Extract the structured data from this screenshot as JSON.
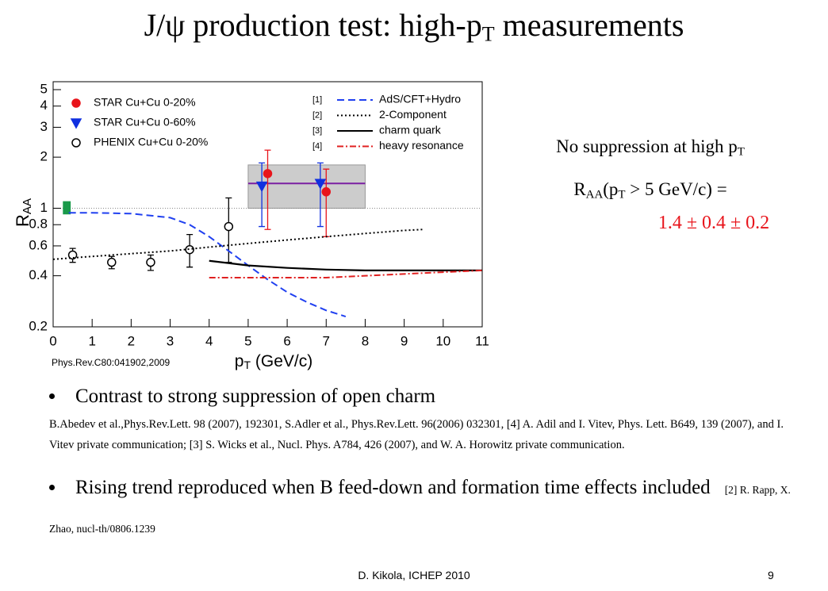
{
  "title": [
    "J/ψ production test: high-p",
    "T",
    " measurements"
  ],
  "chart_data": {
    "type": "scatter",
    "source": "Phys.Rev.C80:041902,2009",
    "x_label": [
      "p",
      "T",
      " (GeV/c)"
    ],
    "y_label": [
      "R",
      "AA"
    ],
    "xlim": [
      0,
      11
    ],
    "ylim": [
      0.2,
      5
    ],
    "log_y": true,
    "xticks": [
      0,
      1,
      2,
      3,
      4,
      5,
      6,
      7,
      8,
      9,
      10,
      11
    ],
    "yticks": [
      0.2,
      0.4,
      0.6,
      0.8,
      1,
      2,
      3,
      4,
      5
    ],
    "reference": 1,
    "band": {
      "xlim": [
        5,
        8
      ],
      "ylim": [
        1.0,
        1.8
      ],
      "value": 1.4,
      "color": "#cccccc",
      "line_color": "#7b1fa2"
    },
    "norm_box": {
      "xlim": [
        0.25,
        0.45
      ],
      "ylim": [
        0.92,
        1.1
      ],
      "color": "#1a9a4a"
    },
    "series": [
      {
        "name": "STAR Cu+Cu 0-20%",
        "kind": "points",
        "marker": "circle",
        "filled": true,
        "color": "#e8141b",
        "x": [
          5.5,
          7.0
        ],
        "values": [
          1.6,
          1.25
        ],
        "err_plus": [
          0.6,
          0.45
        ],
        "err_minus": [
          0.85,
          0.57
        ]
      },
      {
        "name": "STAR Cu+Cu 0-60%",
        "kind": "points",
        "marker": "triangle",
        "filled": true,
        "color": "#1030e0",
        "x": [
          5.35,
          6.85
        ],
        "values": [
          1.35,
          1.4
        ],
        "err_plus": [
          0.5,
          0.45
        ],
        "err_minus": [
          0.57,
          0.62
        ]
      },
      {
        "name": "PHENIX Cu+Cu 0-20%",
        "kind": "points",
        "marker": "circle",
        "filled": false,
        "color": "#000000",
        "x": [
          0.5,
          1.5,
          2.5,
          3.5,
          4.5
        ],
        "values": [
          0.53,
          0.48,
          0.48,
          0.57,
          0.78
        ],
        "err_plus": [
          0.05,
          0.04,
          0.05,
          0.13,
          0.37
        ],
        "err_minus": [
          0.05,
          0.04,
          0.05,
          0.12,
          0.3
        ]
      },
      {
        "name": "AdS/CFT+Hydro",
        "ref": "[1]",
        "kind": "line",
        "style": "dashed",
        "color": "#2040f0",
        "x": [
          0.4,
          1,
          2,
          3,
          3.5,
          4,
          4.5,
          5,
          5.5,
          6,
          6.5,
          7,
          7.5
        ],
        "values": [
          0.94,
          0.94,
          0.93,
          0.88,
          0.8,
          0.68,
          0.56,
          0.46,
          0.38,
          0.32,
          0.28,
          0.25,
          0.23
        ]
      },
      {
        "name": "2-Component",
        "ref": "[2]",
        "kind": "line",
        "style": "dotted",
        "color": "#000000",
        "x": [
          0,
          1,
          2,
          3,
          4,
          5,
          6,
          7,
          8,
          9,
          9.5
        ],
        "values": [
          0.5,
          0.52,
          0.54,
          0.56,
          0.59,
          0.62,
          0.65,
          0.68,
          0.71,
          0.74,
          0.75
        ]
      },
      {
        "name": "charm quark",
        "ref": "[3]",
        "kind": "line",
        "style": "solid",
        "color": "#000000",
        "x": [
          4,
          5,
          6,
          7,
          8,
          9,
          10,
          11
        ],
        "values": [
          0.49,
          0.46,
          0.445,
          0.435,
          0.43,
          0.43,
          0.43,
          0.43
        ]
      },
      {
        "name": "heavy resonance",
        "ref": "[4]",
        "kind": "line",
        "style": "dashdot",
        "color": "#e02020",
        "x": [
          4,
          5,
          6,
          7,
          8,
          9,
          10,
          11
        ],
        "values": [
          0.39,
          0.39,
          0.39,
          0.39,
          0.4,
          0.41,
          0.42,
          0.43
        ]
      }
    ]
  },
  "summary": {
    "line1": [
      "No suppression at high p",
      "T"
    ],
    "line2": [
      "R",
      "AA",
      "(p",
      "T",
      " > 5 GeV/c) ="
    ],
    "result": "1.4 ± 0.4 ± 0.2"
  },
  "bullets": [
    {
      "text": "Contrast to strong suppression of open charm",
      "note": "B.Abedev et al.,Phys.Rev.Lett. 98 (2007), 192301, S.Adler et al., Phys.Rev.Lett. 96(2006) 032301, [4] A. Adil and I. Vitev, Phys. Lett. B649, 139 (2007), and I. Vitev private communication;  [3] S. Wicks et al., Nucl. Phys. A784, 426 (2007), and W. A. Horowitz private communication."
    },
    {
      "text": "Rising trend reproduced when B feed-down and formation time effects included",
      "note": "[2] R. Rapp, X. Zhao, nucl-th/0806.1239"
    }
  ],
  "footer": {
    "author": "D. Kikola, ICHEP 2010",
    "page": "9"
  }
}
